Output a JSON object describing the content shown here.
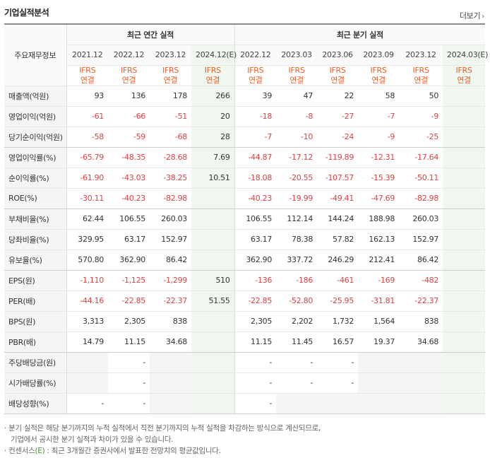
{
  "title": "기업실적분석",
  "more_label": "더보기",
  "row_header": "주요재무정보",
  "group_annual": "최근 연간 실적",
  "group_quarter": "최근 분기 실적",
  "periods": [
    "2021.12",
    "2022.12",
    "2023.12",
    "2024.12(E)",
    "2022.12",
    "2023.03",
    "2023.06",
    "2023.09",
    "2023.12",
    "2024.03(E)"
  ],
  "basis_line1": "IFRS",
  "basis_line2": "연결",
  "rows": [
    {
      "label": "매출액(억원)",
      "values": [
        "93",
        "136",
        "178",
        "266",
        "39",
        "47",
        "22",
        "58",
        "50",
        ""
      ]
    },
    {
      "label": "영업이익(억원)",
      "values": [
        "-61",
        "-66",
        "-51",
        "20",
        "-18",
        "-8",
        "-27",
        "-7",
        "-9",
        ""
      ]
    },
    {
      "label": "당기순이익(억원)",
      "values": [
        "-58",
        "-59",
        "-68",
        "28",
        "-7",
        "-10",
        "-24",
        "-9",
        "-25",
        ""
      ]
    },
    {
      "label": "영업이익률(%)",
      "values": [
        "-65.79",
        "-48.35",
        "-28.68",
        "7.69",
        "-44.87",
        "-17.12",
        "-119.89",
        "-12.31",
        "-17.64",
        ""
      ]
    },
    {
      "label": "순이익률(%)",
      "values": [
        "-61.90",
        "-43.03",
        "-38.25",
        "10.51",
        "-18.08",
        "-20.55",
        "-107.57",
        "-15.39",
        "-50.11",
        ""
      ]
    },
    {
      "label": "ROE(%)",
      "values": [
        "-30.11",
        "-40.23",
        "-82.98",
        "",
        "-40.23",
        "-19.99",
        "-49.41",
        "-47.69",
        "-82.98",
        ""
      ]
    },
    {
      "label": "부채비율(%)",
      "values": [
        "62.44",
        "106.55",
        "260.03",
        "",
        "106.55",
        "112.14",
        "144.24",
        "188.98",
        "260.03",
        ""
      ]
    },
    {
      "label": "당좌비율(%)",
      "values": [
        "329.95",
        "63.17",
        "152.97",
        "",
        "63.17",
        "78.38",
        "57.82",
        "162.13",
        "152.97",
        ""
      ]
    },
    {
      "label": "유보율(%)",
      "values": [
        "570.80",
        "362.90",
        "86.42",
        "",
        "362.90",
        "337.72",
        "246.29",
        "212.41",
        "86.42",
        ""
      ]
    },
    {
      "label": "EPS(원)",
      "values": [
        "-1,110",
        "-1,125",
        "-1,299",
        "510",
        "-136",
        "-186",
        "-461",
        "-169",
        "-482",
        ""
      ]
    },
    {
      "label": "PER(배)",
      "values": [
        "-44.16",
        "-22.85",
        "-22.37",
        "51.55",
        "-22.85",
        "-52.80",
        "-25.95",
        "-31.81",
        "-22.37",
        ""
      ]
    },
    {
      "label": "BPS(원)",
      "values": [
        "3,313",
        "2,305",
        "838",
        "",
        "2,305",
        "2,202",
        "1,732",
        "1,564",
        "838",
        ""
      ]
    },
    {
      "label": "PBR(배)",
      "values": [
        "14.79",
        "11.15",
        "34.68",
        "",
        "11.15",
        "11.45",
        "16.57",
        "19.37",
        "34.68",
        ""
      ]
    },
    {
      "label": "주당배당금(원)",
      "values": [
        "",
        "-",
        "",
        "",
        "-",
        "-",
        "-",
        "",
        "",
        ""
      ]
    },
    {
      "label": "시가배당률(%)",
      "values": [
        "",
        "-",
        "",
        "",
        "-",
        "-",
        "-",
        "",
        "",
        ""
      ]
    },
    {
      "label": "배당성향(%)",
      "values": [
        "-",
        "-",
        "",
        "",
        "-",
        "",
        "",
        "",
        "",
        ""
      ]
    }
  ],
  "footnote_1a": "· 분기 실적은 해당 분기까지의 누적 실적에서 직전 분기까지의 누적 실적을 차감하는 방식으로 계산되므로,",
  "footnote_1b": "기업에서 공시한 분기 실적과 차이가 있을 수 있습니다.",
  "footnote_2_prefix": "· 컨센서스",
  "footnote_2_mark": "(E)",
  "footnote_2_rest": ": 최근 3개월간 증권사에서 발표한 전망치의 평균값입니다.",
  "colors": {
    "negative": "#e04141",
    "basis": "#e8602c",
    "estimate_bg": "#f0f7ee",
    "estimate_text": "#4a8a3a"
  }
}
